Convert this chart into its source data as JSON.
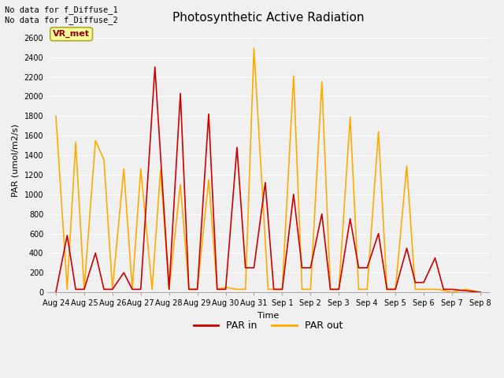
{
  "title": "Photosynthetic Active Radiation",
  "xlabel": "Time",
  "ylabel": "PAR (umol/m2/s)",
  "text_top_left": "No data for f_Diffuse_1\nNo data for f_Diffuse_2",
  "annotation_box": "VR_met",
  "ylim": [
    0,
    2700
  ],
  "yticks": [
    0,
    200,
    400,
    600,
    800,
    1000,
    1200,
    1400,
    1600,
    1800,
    2000,
    2200,
    2400,
    2600
  ],
  "legend_labels": [
    "PAR in",
    "PAR out"
  ],
  "line_color_in": "#cc0000",
  "line_color_out": "#ffaa00",
  "xtick_labels": [
    "Aug 24",
    "Aug 25",
    "Aug 26",
    "Aug 27",
    "Aug 28",
    "Aug 29",
    "Aug 30",
    "Aug 31",
    "Sep 1",
    "Sep 2",
    "Sep 3",
    "Sep 4",
    "Sep 5",
    "Sep 6",
    "Sep 7",
    "Sep 8"
  ],
  "par_in_x": [
    0.0,
    0.4,
    0.7,
    1.0,
    1.4,
    1.7,
    2.0,
    2.4,
    2.7,
    3.0,
    3.5,
    4.0,
    4.4,
    4.7,
    5.0,
    5.4,
    5.7,
    6.0,
    6.4,
    6.7,
    7.0,
    7.4,
    7.7,
    8.0,
    8.4,
    8.7,
    9.0,
    9.4,
    9.7,
    10.0,
    10.4,
    10.7,
    11.0,
    11.4,
    11.7,
    12.0,
    12.4,
    12.7,
    13.0,
    13.4,
    13.7,
    14.0,
    15.0
  ],
  "par_in_y": [
    0,
    580,
    30,
    30,
    400,
    30,
    30,
    200,
    30,
    30,
    2300,
    30,
    2030,
    30,
    30,
    1820,
    30,
    30,
    1480,
    250,
    250,
    1120,
    30,
    30,
    1000,
    250,
    250,
    800,
    30,
    30,
    750,
    250,
    250,
    600,
    30,
    30,
    450,
    100,
    100,
    350,
    30,
    30,
    0
  ],
  "par_out_x": [
    0.0,
    0.4,
    0.7,
    1.0,
    1.4,
    1.7,
    2.0,
    2.4,
    2.7,
    3.0,
    3.4,
    3.7,
    4.0,
    4.4,
    4.7,
    5.0,
    5.4,
    5.7,
    6.0,
    6.4,
    6.7,
    7.0,
    7.5,
    8.0,
    8.4,
    8.7,
    9.0,
    9.4,
    9.7,
    10.0,
    10.4,
    10.7,
    11.0,
    11.4,
    11.7,
    12.0,
    12.4,
    12.7,
    13.0,
    13.5,
    14.0,
    14.5,
    15.0
  ],
  "par_out_y": [
    1800,
    30,
    1530,
    30,
    1550,
    1350,
    30,
    1260,
    30,
    1260,
    30,
    1250,
    30,
    1100,
    30,
    30,
    1150,
    30,
    50,
    30,
    30,
    2490,
    30,
    30,
    2210,
    30,
    30,
    2150,
    30,
    30,
    1790,
    30,
    30,
    1640,
    30,
    30,
    1290,
    30,
    30,
    30,
    0,
    30,
    0
  ]
}
